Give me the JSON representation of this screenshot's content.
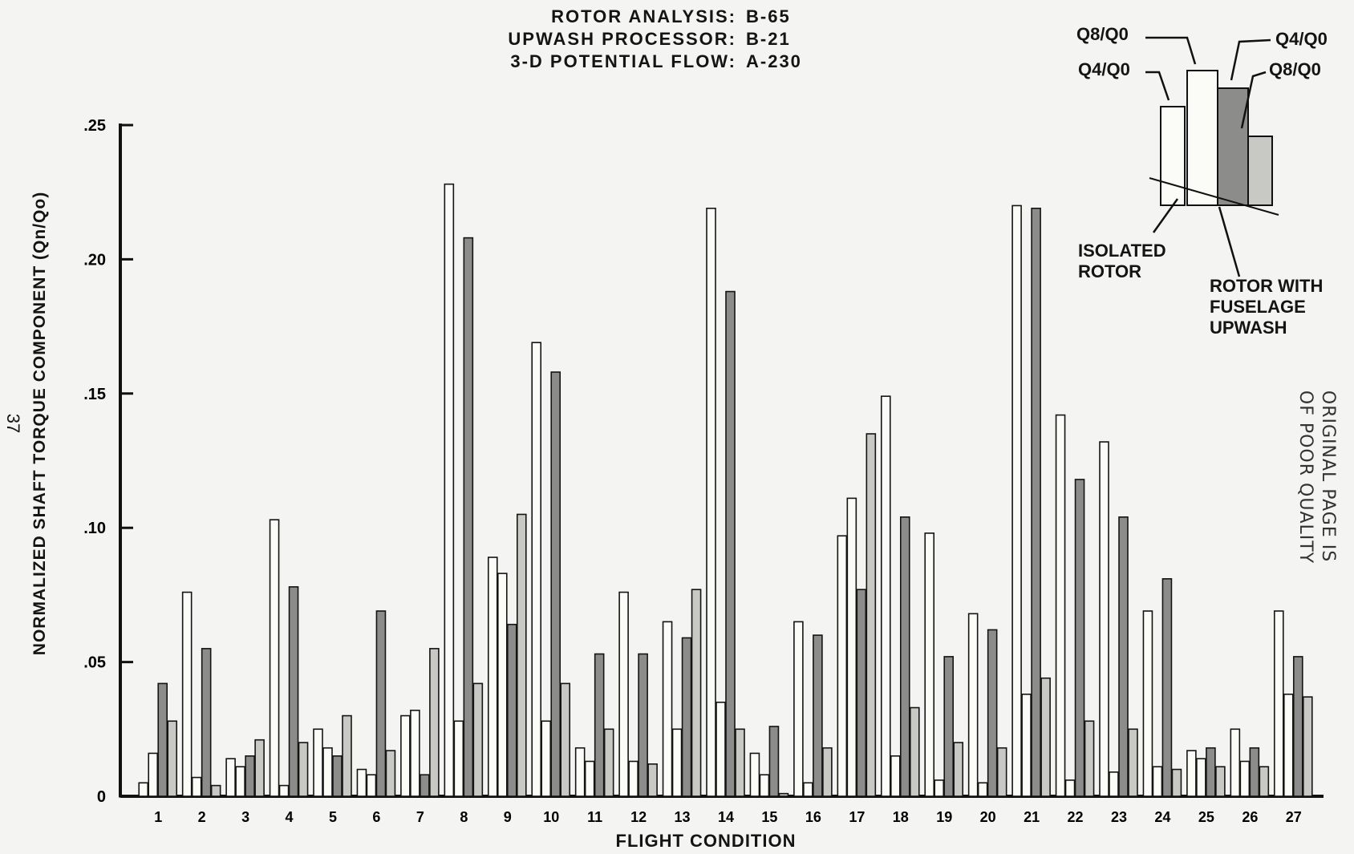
{
  "header": {
    "lines": [
      {
        "label": "ROTOR ANALYSIS:",
        "value": "B-65"
      },
      {
        "label": "UPWASH PROCESSOR:",
        "value": "B-21"
      },
      {
        "label": "3-D POTENTIAL FLOW:",
        "value": "A-230"
      }
    ]
  },
  "legend": {
    "q8_isolated": "Q8/Q0",
    "q4_isolated": "Q4/Q0",
    "q4_upwash": "Q4/Q0",
    "q8_upwash": "Q8/Q0",
    "isolated_label": [
      "ISOLATED",
      "ROTOR"
    ],
    "upwash_label": [
      "ROTOR WITH",
      "FUSELAGE",
      "UPWASH"
    ]
  },
  "page_number": "37",
  "stamp": [
    "ORIGINAL PAGE IS",
    "OF POOR QUALITY"
  ],
  "chart_data": {
    "type": "bar",
    "title": "",
    "xlabel": "FLIGHT CONDITION",
    "ylabel": "NORMALIZED SHAFT TORQUE COMPONENT (Qn/Qo)",
    "ylim": [
      0,
      0.25
    ],
    "yticks": [
      0,
      0.05,
      0.1,
      0.15,
      0.2,
      0.25
    ],
    "ytick_labels": [
      "0",
      ".05",
      ".10",
      ".15",
      ".20",
      ".25"
    ],
    "grid": false,
    "categories": [
      "1",
      "2",
      "3",
      "4",
      "5",
      "6",
      "7",
      "8",
      "9",
      "10",
      "11",
      "12",
      "13",
      "14",
      "15",
      "16",
      "17",
      "18",
      "19",
      "20",
      "21",
      "22",
      "23",
      "24",
      "25",
      "26",
      "27"
    ],
    "series": [
      {
        "name": "Q4/Q0",
        "group": "ISOLATED ROTOR",
        "values": [
          0.005,
          0.076,
          0.014,
          0.103,
          0.025,
          0.01,
          0.03,
          0.228,
          0.089,
          0.169,
          0.018,
          0.076,
          0.065,
          0.219,
          0.016,
          0.065,
          0.097,
          0.149,
          0.098,
          0.068,
          0.22,
          0.142,
          0.132,
          0.069,
          0.017,
          0.025,
          0.069
        ]
      },
      {
        "name": "Q8/Q0",
        "group": "ISOLATED ROTOR",
        "values": [
          0.016,
          0.007,
          0.011,
          0.004,
          0.018,
          0.008,
          0.032,
          0.028,
          0.083,
          0.028,
          0.013,
          0.013,
          0.025,
          0.035,
          0.008,
          0.005,
          0.111,
          0.015,
          0.006,
          0.005,
          0.038,
          0.006,
          0.009,
          0.011,
          0.014,
          0.013,
          0.038
        ]
      },
      {
        "name": "Q4/Q0",
        "group": "ROTOR WITH FUSELAGE UPWASH",
        "values": [
          0.042,
          0.055,
          0.015,
          0.078,
          0.015,
          0.069,
          0.008,
          0.208,
          0.064,
          0.158,
          0.053,
          0.053,
          0.059,
          0.188,
          0.026,
          0.06,
          0.077,
          0.104,
          0.052,
          0.062,
          0.219,
          0.118,
          0.104,
          0.081,
          0.018,
          0.018,
          0.052
        ]
      },
      {
        "name": "Q8/Q0",
        "group": "ROTOR WITH FUSELAGE UPWASH",
        "values": [
          0.028,
          0.004,
          0.021,
          0.02,
          0.03,
          0.017,
          0.055,
          0.042,
          0.105,
          0.042,
          0.025,
          0.012,
          0.077,
          0.025,
          0.001,
          0.018,
          0.135,
          0.033,
          0.02,
          0.018,
          0.044,
          0.028,
          0.025,
          0.01,
          0.011,
          0.011,
          0.037
        ]
      }
    ],
    "colors": {
      "isolated": "#fbfbf8",
      "upwash_q4": "#8c8c8a",
      "upwash_q8": "#c8c8c4",
      "outline": "#141414"
    }
  }
}
